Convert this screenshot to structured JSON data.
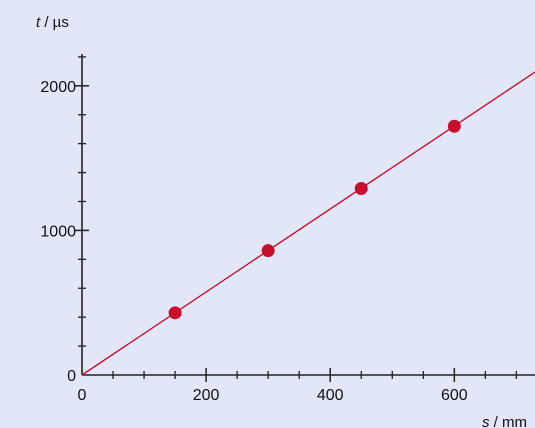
{
  "chart_data": {
    "type": "scatter",
    "colors": {
      "background": "#e1e7f6",
      "axis": "#222222",
      "series": "#c8102e"
    },
    "x_axis": {
      "label_var": "s",
      "label_unit": " / mm",
      "lim": [
        0,
        730
      ],
      "ticks": [
        0,
        200,
        400,
        600
      ],
      "tick_labels": [
        "0",
        "200",
        "400",
        "600"
      ],
      "minor_step": 50
    },
    "y_axis": {
      "label_var": "t",
      "label_unit": " / µs",
      "lim": [
        0,
        2220
      ],
      "ticks": [
        0,
        1000,
        2000
      ],
      "tick_labels": [
        "0",
        "1000",
        "2000"
      ],
      "minor_step": 200
    },
    "series": [
      {
        "points": [
          {
            "x": 150,
            "y": 430
          },
          {
            "x": 300,
            "y": 860
          },
          {
            "x": 450,
            "y": 1290
          },
          {
            "x": 600,
            "y": 1720
          }
        ]
      }
    ],
    "fit_line": {
      "x0": 0,
      "y0": 0,
      "slope": 2.87
    },
    "grid": false
  }
}
